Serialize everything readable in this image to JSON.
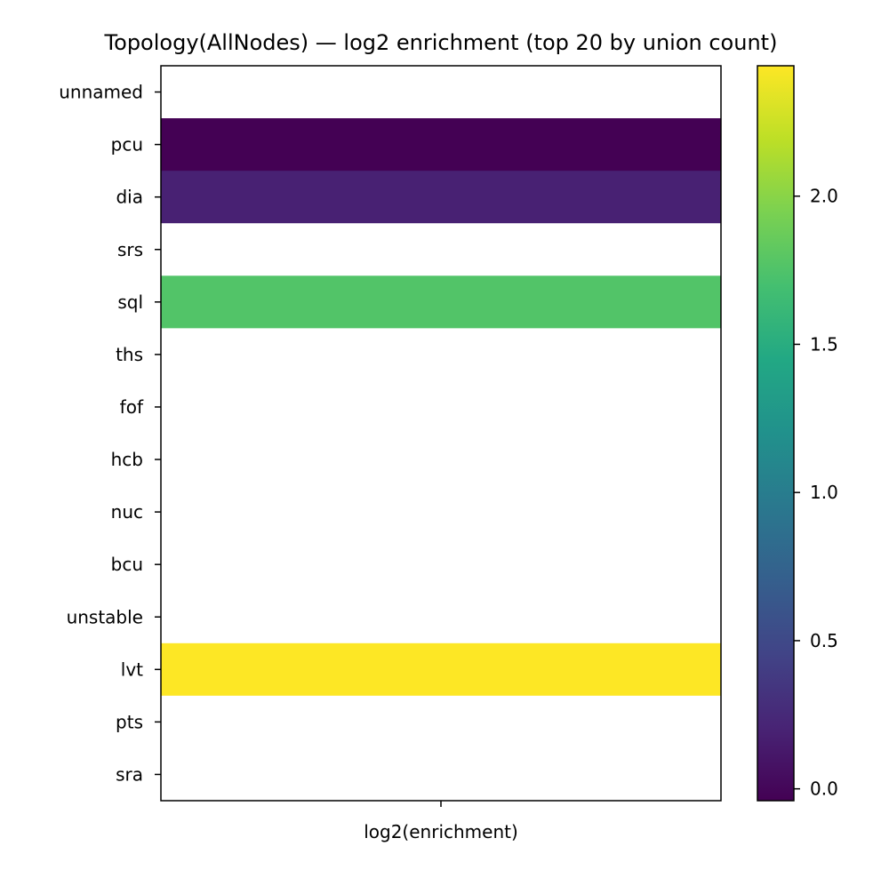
{
  "chart_data": {
    "type": "heatmap",
    "title": "Topology(AllNodes) — log2 enrichment (top 20 by union count)",
    "xlabel": "log2(enrichment)",
    "ylabel": "",
    "columns": [
      ""
    ],
    "rows": [
      "unnamed",
      "pcu",
      "dia",
      "srs",
      "sql",
      "ths",
      "fof",
      "hcb",
      "nuc",
      "bcu",
      "unstable",
      "lvt",
      "pts",
      "sra"
    ],
    "values": [
      null,
      -0.04,
      0.19,
      null,
      1.76,
      null,
      null,
      null,
      null,
      null,
      null,
      2.44,
      null,
      null
    ],
    "colormap": "viridis",
    "vmin": -0.04,
    "vmax": 2.44,
    "colorbar": {
      "ticks": [
        0.0,
        0.5,
        1.0,
        1.5,
        2.0
      ],
      "tick_labels": [
        "0.0",
        "0.5",
        "1.0",
        "1.5",
        "2.0"
      ]
    },
    "missing_color": "#ffffff"
  }
}
